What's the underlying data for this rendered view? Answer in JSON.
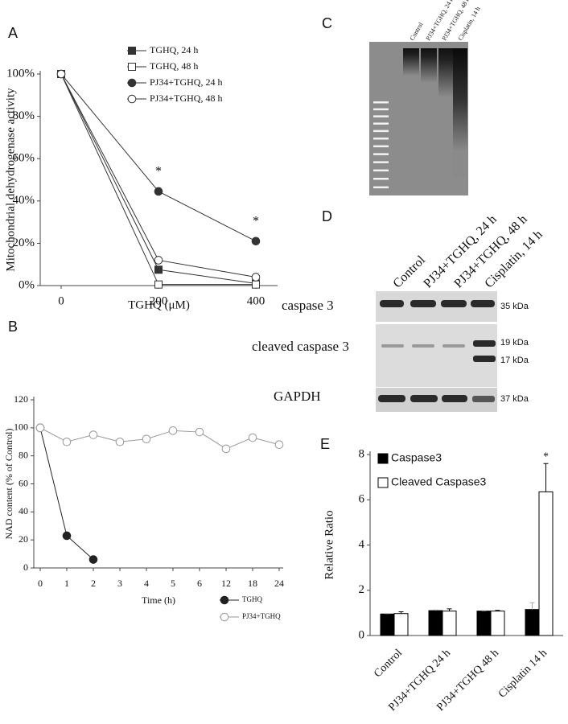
{
  "chart_data": [
    {
      "panel": "A",
      "type": "line",
      "x_label": "TGHQ (μM)",
      "y_label": "Mitochondrial dehydrogenase activity",
      "categories": [
        "0",
        "200",
        "400"
      ],
      "ylim": [
        0,
        100
      ],
      "yticks": [
        {
          "value": 0,
          "label": "0%"
        },
        {
          "value": 20,
          "label": "20%"
        },
        {
          "value": 40,
          "label": "40%"
        },
        {
          "value": 60,
          "label": "60%"
        },
        {
          "value": 80,
          "label": "80%"
        },
        {
          "value": 100,
          "label": "100%"
        }
      ],
      "series": [
        {
          "name": "TGHQ, 24 h",
          "color": "#333333",
          "marker": "square",
          "filled": true,
          "values": [
            100,
            7.5,
            1
          ]
        },
        {
          "name": "TGHQ, 48 h",
          "color": "#333333",
          "marker": "square",
          "filled": false,
          "values": [
            100,
            0.5,
            0.5
          ]
        },
        {
          "name": "PJ34+TGHQ, 24 h",
          "color": "#333333",
          "marker": "circle",
          "filled": true,
          "values": [
            100,
            44.5,
            21
          ]
        },
        {
          "name": "PJ34+TGHQ, 48 h",
          "color": "#333333",
          "marker": "circle",
          "filled": false,
          "values": [
            100,
            12,
            4
          ]
        }
      ],
      "annotations": [
        "*",
        "*"
      ]
    },
    {
      "panel": "B",
      "type": "line",
      "x_label": "Time (h)",
      "y_label": "NAD content (% of Control)",
      "categories": [
        "0",
        "1",
        "2",
        "3",
        "4",
        "5",
        "6",
        "12",
        "18",
        "24"
      ],
      "ylim": [
        0,
        120
      ],
      "yticks": [
        0,
        20,
        40,
        60,
        80,
        100,
        120
      ],
      "series": [
        {
          "name": "TGHQ",
          "color": "#222222",
          "marker": "circle",
          "filled": true,
          "values": [
            100,
            23,
            6,
            null,
            null,
            null,
            null,
            null,
            null,
            null
          ]
        },
        {
          "name": "PJ34+TGHQ",
          "color": "#999999",
          "marker": "circle",
          "filled": false,
          "values": [
            100,
            90,
            95,
            90,
            92,
            98,
            97,
            85,
            93,
            88
          ]
        }
      ]
    },
    {
      "panel": "E",
      "type": "bar",
      "y_label": "Relative Ratio",
      "categories": [
        "Control",
        "PJ34+TGHQ 24 h",
        "PJ34+TGHQ 48 h",
        "Cisplatin 14 h"
      ],
      "ylim": [
        0,
        8
      ],
      "yticks": [
        0,
        2,
        4,
        6,
        8
      ],
      "series": [
        {
          "name": "Caspase3",
          "color": "#000000",
          "values": [
            0.95,
            1.1,
            1.08,
            1.15
          ],
          "errors": [
            0.02,
            0.03,
            0.02,
            0.3
          ]
        },
        {
          "name": "Cleaved Caspase3",
          "color": "#ffffff",
          "values": [
            0.97,
            1.08,
            1.08,
            6.35
          ],
          "errors": [
            0.08,
            0.1,
            0.03,
            1.25
          ]
        }
      ],
      "annotations": [
        "*"
      ]
    }
  ],
  "gel": {
    "panel": "C",
    "lanes": [
      "Control",
      "PJ34+TGHQ, 24 h",
      "PJ34+TGHQ, 48 h",
      "Cisplatin, 14 h"
    ]
  },
  "western": {
    "panel": "D",
    "lanes": [
      "Control",
      "PJ34+TGHQ, 24 h",
      "PJ34+TGHQ, 48 h",
      "Cisplatin, 14 h"
    ],
    "rows": [
      {
        "label": "caspase 3",
        "kda": [
          "35 kDa"
        ]
      },
      {
        "label": "cleaved caspase 3",
        "kda": [
          "19 kDa",
          "17 kDa"
        ]
      },
      {
        "label": "GAPDH",
        "kda": [
          "37 kDa"
        ]
      }
    ]
  }
}
